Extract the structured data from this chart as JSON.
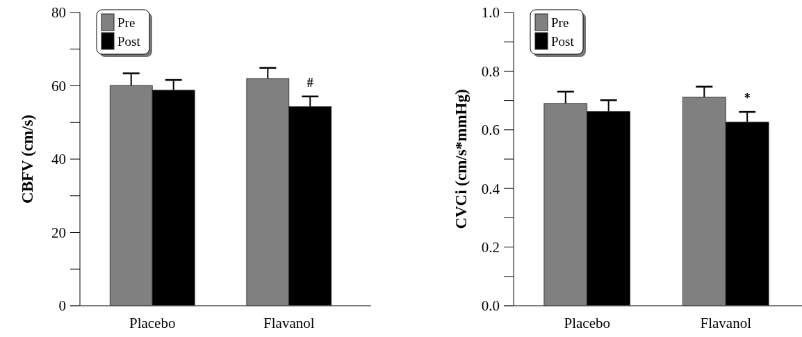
{
  "chart_data": [
    {
      "type": "bar",
      "ylabel": "CBFV (cm/s)",
      "categories": [
        "Placebo",
        "Flavanol"
      ],
      "series": [
        {
          "name": "Pre",
          "color": "#808080",
          "values": [
            60.1,
            62.0
          ],
          "errors": [
            3.3,
            2.9
          ]
        },
        {
          "name": "Post",
          "color": "#000000",
          "values": [
            58.8,
            54.3
          ],
          "errors": [
            2.8,
            2.8
          ]
        }
      ],
      "ylim": [
        0,
        80
      ],
      "yticks": [
        0,
        {
          "value": 10,
          "label": null
        },
        20,
        {
          "value": 30,
          "label": null
        },
        40,
        {
          "value": 50,
          "label": null
        },
        60,
        {
          "value": 70,
          "label": null
        },
        80
      ],
      "annotations": [
        {
          "text": "#",
          "x": "Flavanol",
          "y": 57.1
        }
      ],
      "legend": "top left",
      "grid": false
    },
    {
      "type": "bar",
      "ylabel": "CVCi (cm/s*mmHg)",
      "categories": [
        "Placebo",
        "Flavanol"
      ],
      "series": [
        {
          "name": "Pre",
          "color": "#808080",
          "values": [
            0.69,
            0.711
          ],
          "errors": [
            0.04,
            0.036
          ]
        },
        {
          "name": "Post",
          "color": "#000000",
          "values": [
            0.662,
            0.626
          ],
          "errors": [
            0.039,
            0.035
          ]
        }
      ],
      "ylim": [
        0,
        1.0
      ],
      "yticks": [
        {
          "value": 0,
          "label": "0.0"
        },
        {
          "value": 0.1,
          "label": null
        },
        {
          "value": 0.2,
          "label": "0.2"
        },
        {
          "value": 0.3,
          "label": null
        },
        {
          "value": 0.4,
          "label": "0.4"
        },
        {
          "value": 0.5,
          "label": null
        },
        {
          "value": 0.6,
          "label": "0.6"
        },
        {
          "value": 0.7,
          "label": null
        },
        {
          "value": 0.8,
          "label": "0.8"
        },
        {
          "value": 0.9,
          "label": null
        },
        {
          "value": 1.0,
          "label": "1.0"
        }
      ],
      "annotations": [
        {
          "text": "*",
          "x": "Flavanol",
          "y": 0.661
        }
      ],
      "legend": "top left",
      "grid": false
    }
  ]
}
